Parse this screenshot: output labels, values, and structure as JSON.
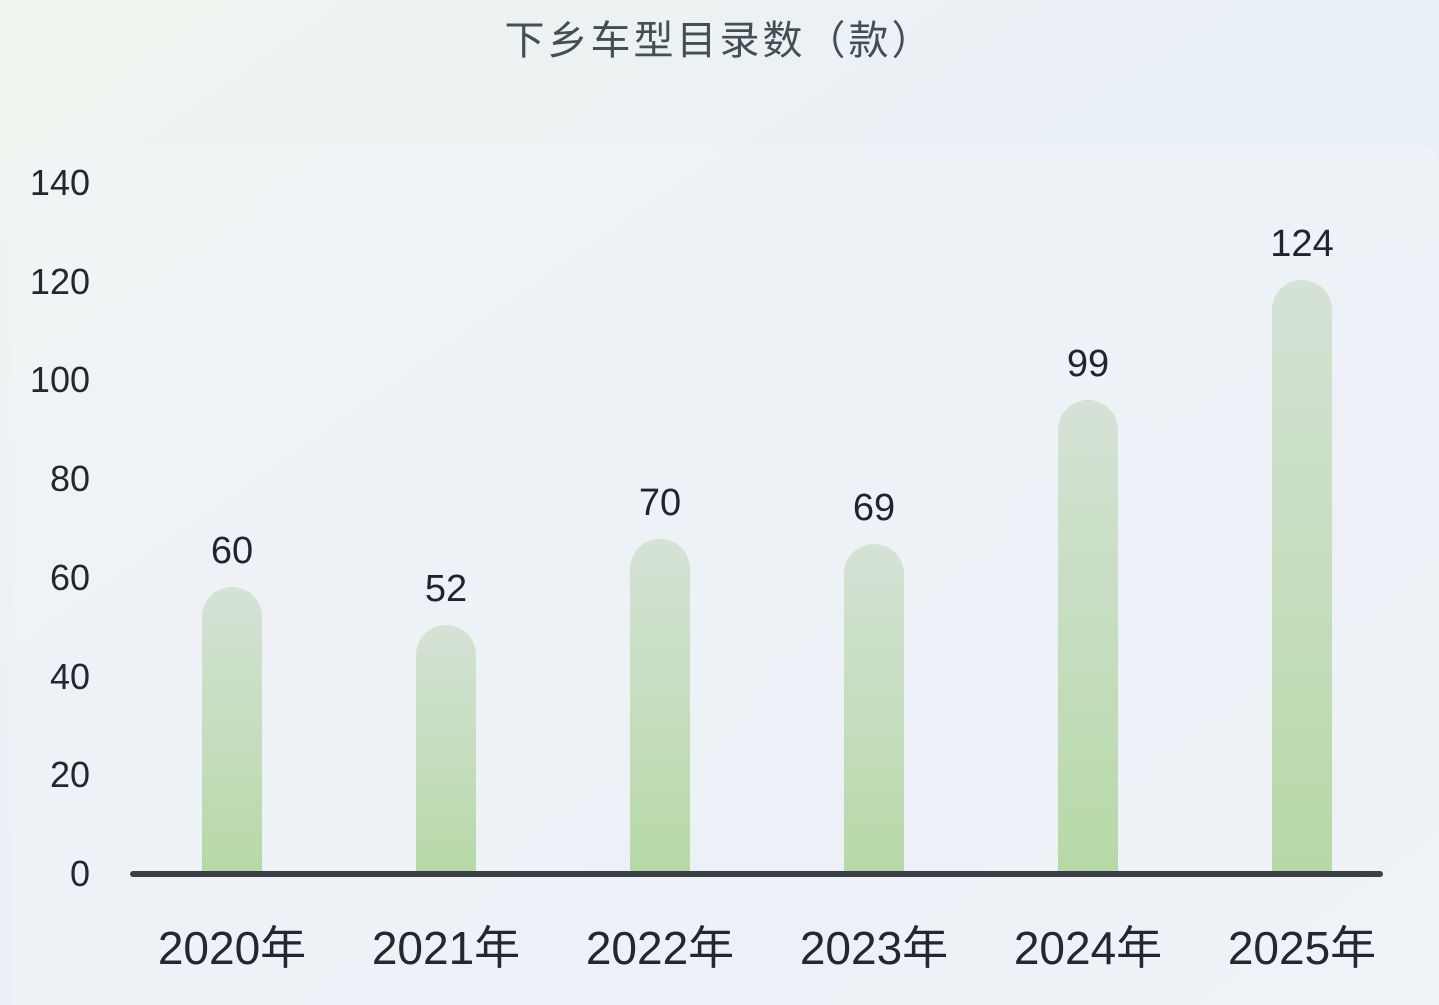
{
  "chart_data": {
    "type": "bar",
    "title": "下乡车型目录数（款）",
    "categories": [
      "2020年",
      "2021年",
      "2022年",
      "2023年",
      "2024年",
      "2025年"
    ],
    "values": [
      60,
      52,
      70,
      69,
      99,
      124
    ],
    "xlabel": "",
    "ylabel": "",
    "ylim": [
      0,
      140
    ],
    "yticks": [
      0,
      20,
      40,
      60,
      80,
      100,
      120,
      140
    ],
    "grid": "off",
    "legend": "none",
    "bar_labels_shown": true,
    "colors": {
      "bar_gradient_top": "#d5e2d6",
      "bar_gradient_bottom": "#b6d9a7",
      "axis_line": "#3a4145",
      "tick_label": "#23282e",
      "value_label": "#1f252b",
      "title": "#434f54",
      "background": "#e9eff6",
      "panel": "#eef2f7"
    }
  }
}
